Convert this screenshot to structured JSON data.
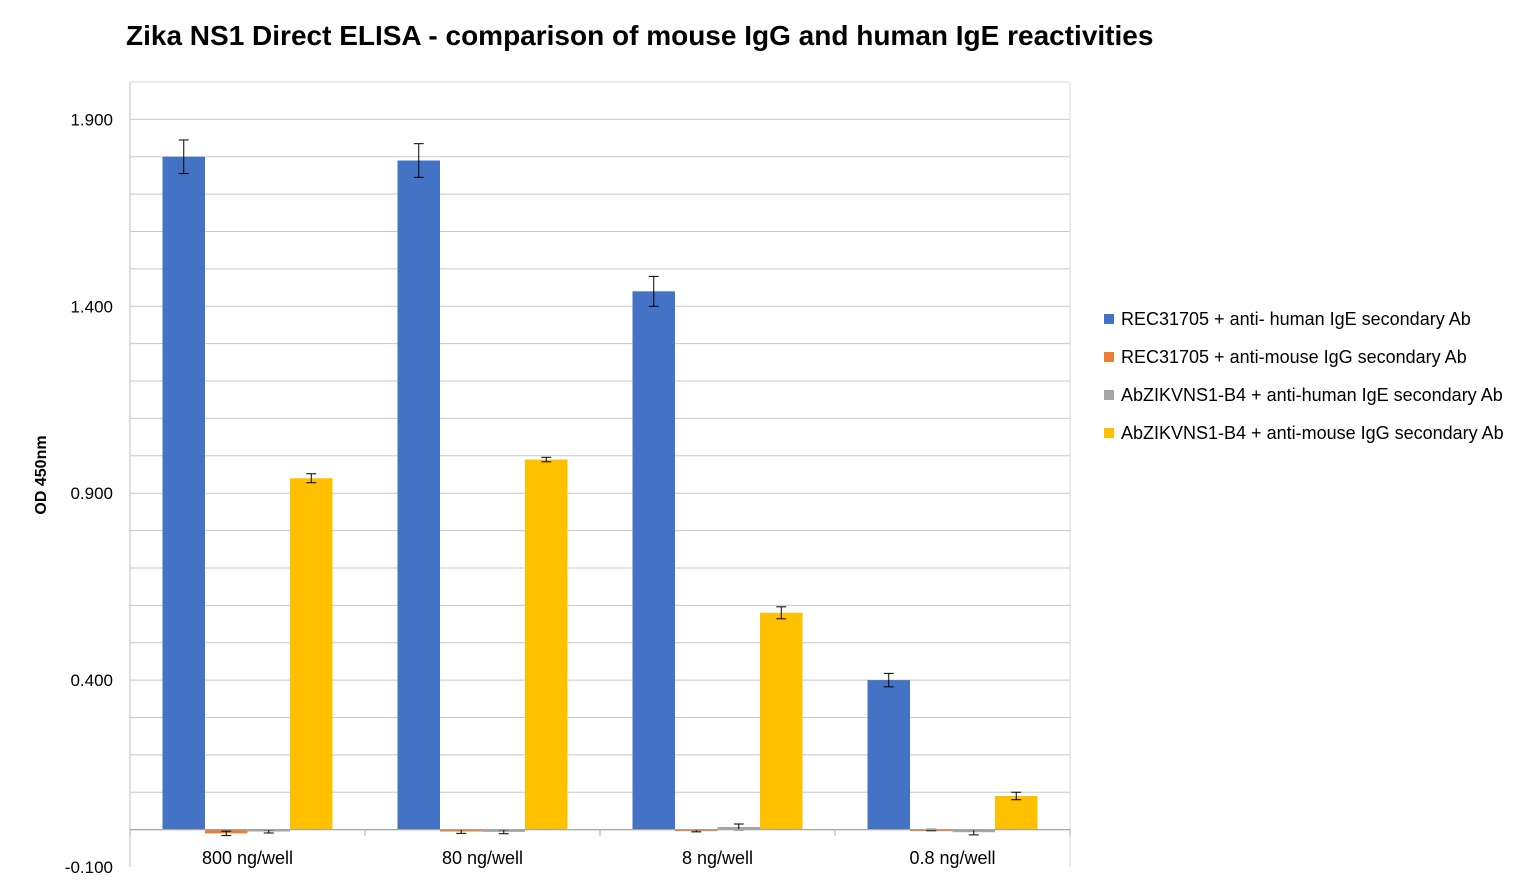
{
  "chart_data": {
    "type": "bar",
    "title": "Zika NS1 Direct ELISA - comparison of mouse IgG and human IgE reactivities",
    "ylabel": "OD 450nm",
    "xlabel": "",
    "ylim": [
      -0.1,
      2.0
    ],
    "yticks": [
      -0.1,
      0.4,
      0.9,
      1.4,
      1.9
    ],
    "ytick_labels": [
      "-0.100",
      "0.400",
      "0.900",
      "1.400",
      "1.900"
    ],
    "minor_step": 0.1,
    "categories": [
      "800 ng/well",
      "80 ng/well",
      "8 ng/well",
      "0.8 ng/well"
    ],
    "legend_position": "right",
    "series": [
      {
        "name": "REC31705 + anti- human IgE secondary Ab",
        "color": "#4472C4",
        "values": [
          1.8,
          1.79,
          1.44,
          0.4
        ],
        "errors": [
          0.045,
          0.045,
          0.04,
          0.018
        ]
      },
      {
        "name": "REC31705 + anti-mouse IgG secondary Ab",
        "color": "#ED7D31",
        "values": [
          -0.01,
          -0.005,
          -0.003,
          -0.001
        ],
        "errors": [
          0.006,
          0.005,
          0.003,
          0.002
        ]
      },
      {
        "name": "AbZIKVNS1-B4 + anti-human IgE secondary Ab",
        "color": "#A5A5A5",
        "values": [
          -0.005,
          -0.006,
          0.007,
          -0.007
        ],
        "errors": [
          0.004,
          0.005,
          0.008,
          0.007
        ]
      },
      {
        "name": "AbZIKVNS1-B4 + anti-mouse IgG secondary Ab",
        "color": "#FFC000",
        "values": [
          0.94,
          0.99,
          0.58,
          0.09
        ],
        "errors": [
          0.012,
          0.006,
          0.016,
          0.01
        ]
      }
    ]
  }
}
